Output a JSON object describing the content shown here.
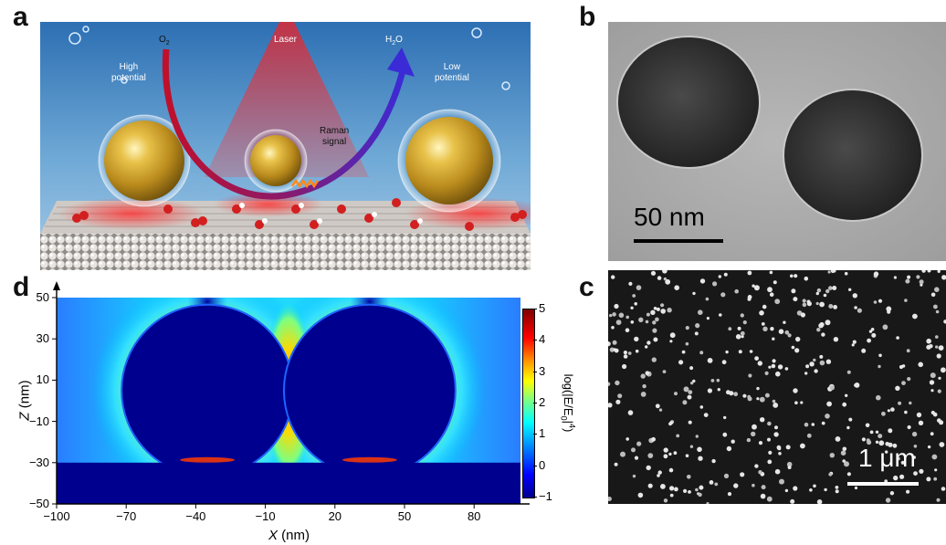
{
  "panels": {
    "a": {
      "letter": "a",
      "labels": {
        "o2": "O",
        "o2_sub": "2",
        "laser": "Laser",
        "h2o_h": "H",
        "h2o_sub": "2",
        "h2o_o": "O",
        "high_line1": "High",
        "high_line2": "potential",
        "low_line1": "Low",
        "low_line2": "potential",
        "raman_line1": "Raman",
        "raman_line2": "signal"
      }
    },
    "b": {
      "letter": "b",
      "scale_label": "50 nm"
    },
    "c": {
      "letter": "c",
      "scale_label": "1 μm"
    },
    "d": {
      "letter": "d",
      "xlabel_var": "X",
      "xlabel_unit": " (nm)",
      "ylabel_var": "Z",
      "ylabel_unit": " (nm)",
      "colorbar_label": "log(|E/E0|4)",
      "colorbar_label_main": "log(|E/E",
      "colorbar_label_sub": "0",
      "colorbar_label_end": "|",
      "colorbar_label_sup": "4",
      "colorbar_label_close": ")"
    }
  },
  "chart_data": {
    "type": "heatmap",
    "title": "",
    "xlabel": "X (nm)",
    "ylabel": "Z (nm)",
    "xlim": [
      -100,
      100
    ],
    "ylim": [
      -50,
      50
    ],
    "xticks": [
      -100,
      -70,
      -40,
      -10,
      20,
      50,
      80
    ],
    "yticks": [
      -50,
      -30,
      -10,
      10,
      30,
      50
    ],
    "colorbar": {
      "label": "log(|E/E0|4)",
      "range": [
        -1,
        5
      ],
      "ticks": [
        -1,
        0,
        1,
        2,
        3,
        4,
        5
      ],
      "colors": [
        "#00008f",
        "#0000ff",
        "#00a0ff",
        "#00ffff",
        "#7fff7f",
        "#ffff00",
        "#ff8000",
        "#ff0000",
        "#800000"
      ]
    },
    "particles": [
      {
        "center_x": -35,
        "center_z": 5,
        "radius": 37
      },
      {
        "center_x": 35,
        "center_z": 5,
        "radius": 37
      }
    ],
    "substrate_top_z": -30
  }
}
